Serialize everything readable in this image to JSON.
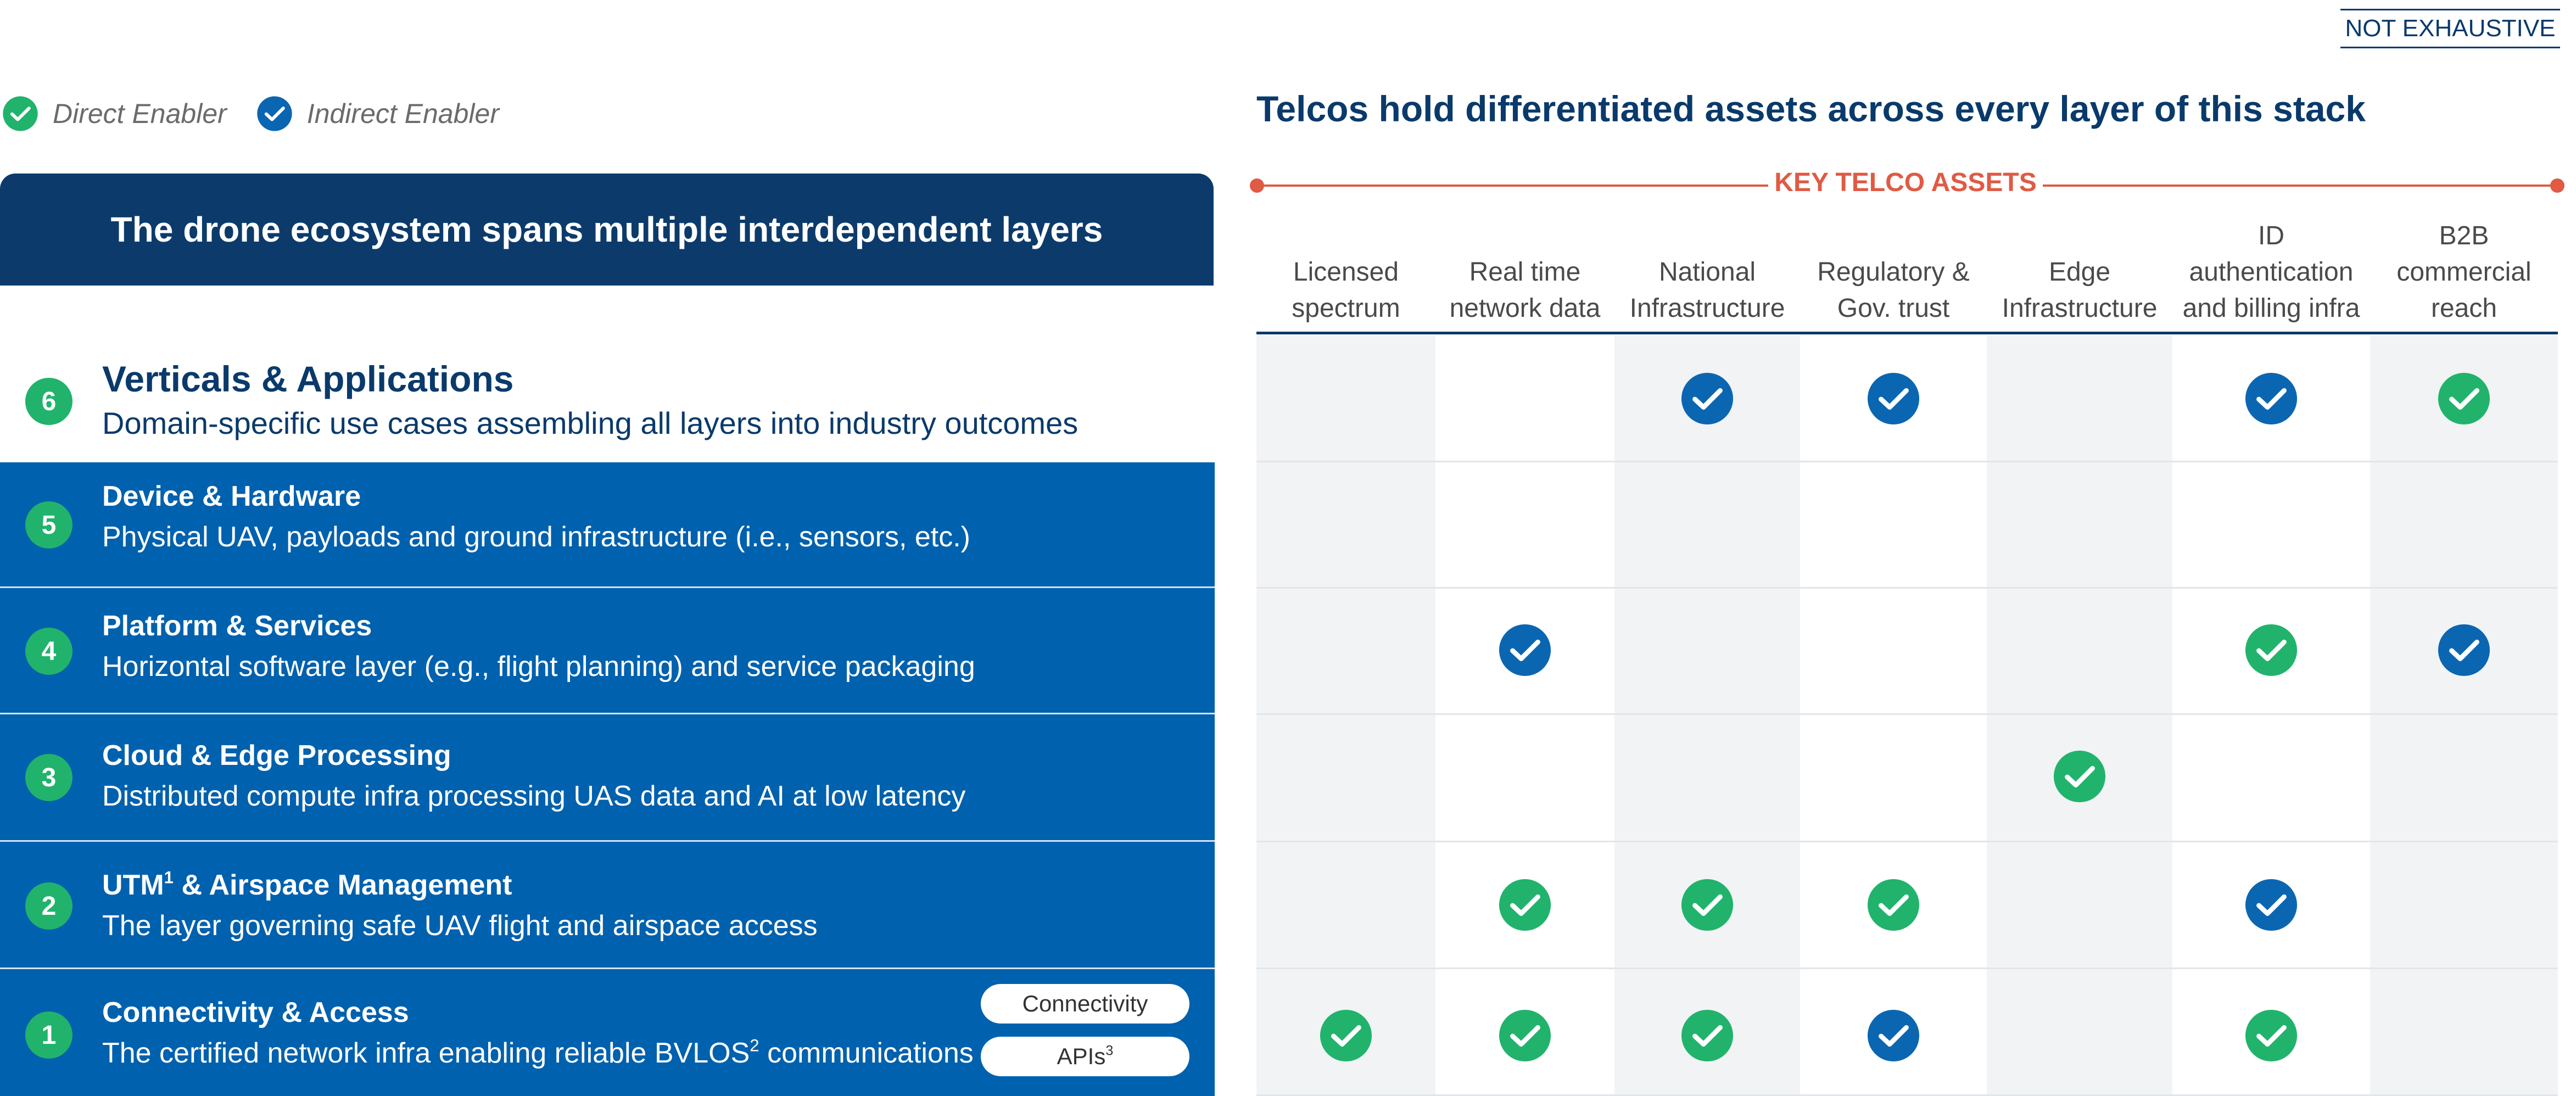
{
  "badge": "NOT EXHAUSTIVE",
  "legend": {
    "direct": {
      "label": "Direct Enabler",
      "color": "#21b36c",
      "icon": "check-circle-icon"
    },
    "indirect": {
      "label": "Indirect Enabler",
      "color": "#0b66b2",
      "icon": "check-circle-icon"
    }
  },
  "left_header": "The drone ecosystem spans multiple interdependent layers",
  "layers": [
    {
      "num": "6",
      "title": "Verticals & Applications",
      "desc": "Domain-specific use cases assembling all layers into industry outcomes"
    },
    {
      "num": "5",
      "title": "Device & Hardware",
      "desc": "Physical UAV, payloads and ground infrastructure (i.e., sensors, etc.)"
    },
    {
      "num": "4",
      "title": "Platform & Services",
      "desc": "Horizontal software layer (e.g., flight planning) and service packaging"
    },
    {
      "num": "3",
      "title": "Cloud & Edge Processing",
      "desc": "Distributed compute infra processing UAS data and AI at low latency"
    },
    {
      "num": "2",
      "title_main": "UTM",
      "title_sup": "1",
      "title_rest": " & Airspace Management",
      "desc": "The layer governing safe UAV flight and airspace access"
    },
    {
      "num": "1",
      "title": "Connectivity & Access",
      "desc_main": "The certified network infra enabling reliable BVLOS",
      "desc_sup": "2",
      "desc_rest": " communications",
      "pills": [
        {
          "label": "Connectivity"
        },
        {
          "label_main": "APIs",
          "label_sup": "3"
        }
      ]
    }
  ],
  "right_title": "Telcos hold differentiated assets across every layer of this stack",
  "key_label": "KEY TELCO ASSETS",
  "columns": [
    {
      "label": "Licensed\nspectrum"
    },
    {
      "label": "Real time\nnetwork data"
    },
    {
      "label": "National\nInfrastructure"
    },
    {
      "label": "Regulatory &\nGov. trust"
    },
    {
      "label": "Edge\nInfrastructure"
    },
    {
      "label": "ID\nauthentication\nand billing infra"
    },
    {
      "label": "B2B\ncommercial\nreach"
    }
  ],
  "matrix": [
    [
      "",
      "",
      "indirect",
      "indirect",
      "",
      "indirect",
      "direct"
    ],
    [
      "",
      "",
      "",
      "",
      "",
      "",
      ""
    ],
    [
      "",
      "indirect",
      "",
      "",
      "",
      "direct",
      "indirect"
    ],
    [
      "",
      "",
      "",
      "",
      "direct",
      "",
      ""
    ],
    [
      "",
      "direct",
      "direct",
      "direct",
      "",
      "indirect",
      ""
    ],
    [
      "direct",
      "direct",
      "direct",
      "indirect",
      "",
      "direct",
      ""
    ]
  ]
}
